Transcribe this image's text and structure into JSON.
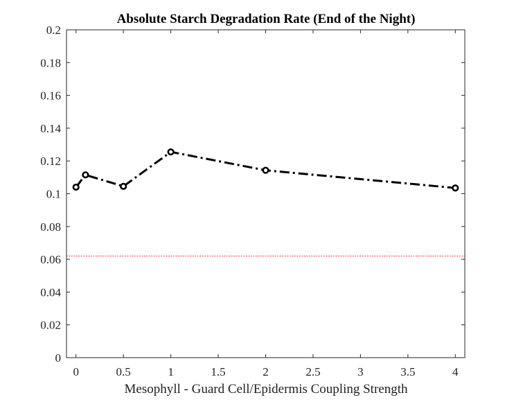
{
  "chart_data": {
    "type": "line",
    "title": "Absolute Starch Degradation Rate (End of the Night)",
    "xlabel": "Mesophyll - Guard Cell/Epidermis Coupling Strength",
    "ylabel": "",
    "xlim": [
      -0.1,
      4.1
    ],
    "ylim": [
      0,
      0.2
    ],
    "x_ticks": [
      0,
      0.5,
      1,
      1.5,
      2,
      2.5,
      3,
      3.5,
      4
    ],
    "x_tick_labels": [
      "0",
      "0.5",
      "1",
      "1.5",
      "2",
      "2.5",
      "3",
      "3.5",
      "4"
    ],
    "y_ticks": [
      0,
      0.02,
      0.04,
      0.06,
      0.08,
      0.1,
      0.12,
      0.14,
      0.16,
      0.18,
      0.2
    ],
    "y_tick_labels": [
      "0",
      "0.02",
      "0.04",
      "0.06",
      "0.08",
      "0.1",
      "0.12",
      "0.14",
      "0.16",
      "0.18",
      "0.2"
    ],
    "grid": false,
    "series": [
      {
        "x": [
          0,
          0.1,
          0.5,
          1,
          2,
          4
        ],
        "y": [
          0.104,
          0.1115,
          0.1045,
          0.1255,
          0.1143,
          0.1035
        ],
        "color": "#000000",
        "line_style": "dash-dot",
        "marker": "circle"
      }
    ],
    "reference_lines": [
      {
        "y": 0.062,
        "color": "#ff0000",
        "line_style": "dotted"
      }
    ]
  }
}
